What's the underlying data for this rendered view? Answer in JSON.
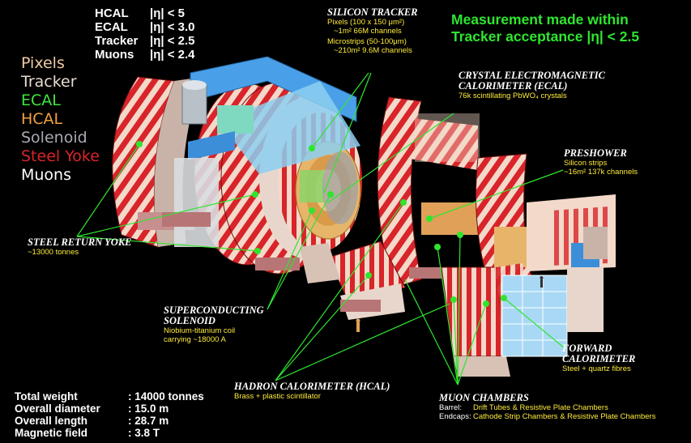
{
  "acceptance": [
    {
      "det": "HCAL",
      "cond": "|η| < 5"
    },
    {
      "det": "ECAL",
      "cond": "|η| < 3.0"
    },
    {
      "det": "Tracker",
      "cond": "|η| < 2.5"
    },
    {
      "det": "Muons",
      "cond": "|η| < 2.4"
    }
  ],
  "legend": [
    {
      "label": "Pixels",
      "color": "#f0c9a0"
    },
    {
      "label": "Tracker",
      "color": "#e6dccf"
    },
    {
      "label": "ECAL",
      "color": "#3de63d"
    },
    {
      "label": "HCAL",
      "color": "#f0a040"
    },
    {
      "label": "Solenoid",
      "color": "#a9a9b3"
    },
    {
      "label": "Steel Yoke",
      "color": "#d8242a"
    },
    {
      "label": "Muons",
      "color": "#ffffff"
    }
  ],
  "measurement": {
    "line1": "Measurement made within",
    "line2": "Tracker acceptance |η| < 2.5",
    "color": "#2ee62e"
  },
  "silicon_tracker": {
    "title": "SILICON TRACKER",
    "pixels": "Pixels (100 x 150 μm²)",
    "pixels_stats": "~1m²    66M channels",
    "microstrips": "Microstrips (50-100μm)",
    "microstrips_stats": "~210m²   9.6M channels"
  },
  "ecal": {
    "title1": "CRYSTAL ELECTROMAGNETIC",
    "title2": "CALORIMETER (ECAL)",
    "sub": "76k scintillating PbWO₄ crystals"
  },
  "preshower": {
    "title": "PRESHOWER",
    "sub1": "Silicon strips",
    "sub2": "~16m²   137k channels"
  },
  "yoke": {
    "title": "STEEL RETURN YOKE",
    "sub": "~13000 tonnes"
  },
  "solenoid": {
    "title1": "SUPERCONDUCTING",
    "title2": "SOLENOID",
    "sub1": "Niobium-titanium coil",
    "sub2": "carrying ~18000 A"
  },
  "hcal": {
    "title": "HADRON CALORIMETER (HCAL)",
    "sub": "Brass + plastic scintillator"
  },
  "forward": {
    "title1": "FORWARD",
    "title2": "CALORIMETER",
    "sub": "Steel + quartz fibres"
  },
  "muon": {
    "title": "MUON CHAMBERS",
    "barrel_key": "Barrel:",
    "barrel_val": "Drift Tubes & Resistive Plate Chambers",
    "endcap_key": "Endcaps:",
    "endcap_val": "Cathode Strip Chambers & Resistive Plate Chambers"
  },
  "specs": [
    {
      "key": "Total weight",
      "val": ": 14000 tonnes"
    },
    {
      "key": "Overall diameter",
      "val": ": 15.0 m"
    },
    {
      "key": "Overall length",
      "val": ": 28.7 m"
    },
    {
      "key": "Magnetic field",
      "val": ": 3.8 T"
    }
  ]
}
